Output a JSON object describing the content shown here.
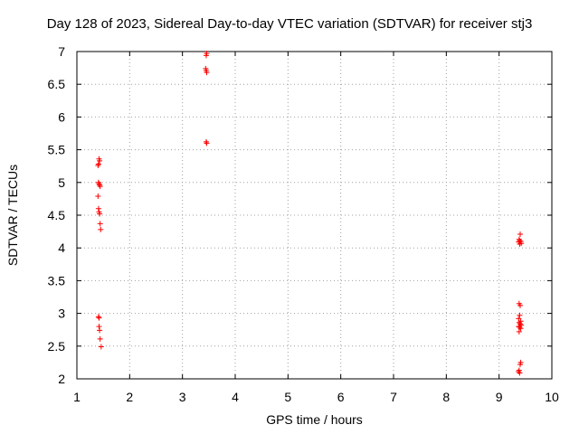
{
  "chart_data": {
    "type": "scatter",
    "title": "Day 128 of 2023, Sidereal Day-to-day VTEC variation (SDTVAR) for receiver stj3",
    "xlabel": "GPS time / hours",
    "ylabel": "SDTVAR / TECUs",
    "xlim": [
      1,
      10
    ],
    "ylim": [
      2,
      7
    ],
    "xticks": [
      "1",
      "2",
      "3",
      "4",
      "5",
      "6",
      "7",
      "8",
      "9",
      "10"
    ],
    "yticks": [
      "2",
      "2.5",
      "3",
      "3.5",
      "4",
      "4.5",
      "5",
      "5.5",
      "6",
      "6.5",
      "7"
    ],
    "grid": true,
    "marker": "+",
    "color": "#ff0000",
    "series": [
      {
        "points": [
          [
            1.42,
            5.36
          ],
          [
            1.43,
            5.33
          ],
          [
            1.41,
            5.28
          ],
          [
            1.4,
            5.26
          ],
          [
            1.41,
            5.0
          ],
          [
            1.42,
            4.98
          ],
          [
            1.43,
            4.96
          ],
          [
            1.44,
            4.94
          ],
          [
            1.4,
            4.79
          ],
          [
            1.41,
            4.6
          ],
          [
            1.42,
            4.55
          ],
          [
            1.43,
            4.52
          ],
          [
            1.44,
            4.37
          ],
          [
            1.45,
            4.28
          ],
          [
            1.41,
            2.95
          ],
          [
            1.42,
            2.93
          ],
          [
            1.42,
            2.8
          ],
          [
            1.43,
            2.74
          ],
          [
            1.44,
            2.61
          ],
          [
            1.46,
            2.49
          ],
          [
            3.46,
            6.97
          ],
          [
            3.45,
            6.94
          ],
          [
            3.44,
            6.74
          ],
          [
            3.45,
            6.71
          ],
          [
            3.46,
            6.68
          ],
          [
            3.45,
            5.62
          ],
          [
            3.46,
            5.6
          ],
          [
            9.4,
            4.21
          ],
          [
            9.38,
            4.13
          ],
          [
            9.39,
            4.11
          ],
          [
            9.37,
            4.09
          ],
          [
            9.41,
            4.1
          ],
          [
            9.42,
            4.07
          ],
          [
            9.39,
            4.06
          ],
          [
            9.38,
            3.15
          ],
          [
            9.4,
            3.12
          ],
          [
            9.39,
            2.97
          ],
          [
            9.37,
            2.92
          ],
          [
            9.41,
            2.88
          ],
          [
            9.38,
            2.86
          ],
          [
            9.4,
            2.84
          ],
          [
            9.42,
            2.82
          ],
          [
            9.37,
            2.8
          ],
          [
            9.39,
            2.79
          ],
          [
            9.41,
            2.77
          ],
          [
            9.38,
            2.72
          ],
          [
            9.41,
            2.25
          ],
          [
            9.4,
            2.22
          ],
          [
            9.38,
            2.13
          ],
          [
            9.37,
            2.11
          ],
          [
            9.39,
            2.09
          ]
        ]
      }
    ]
  }
}
